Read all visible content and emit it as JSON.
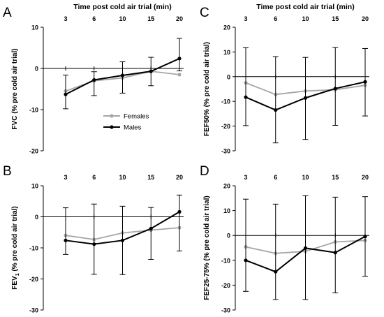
{
  "colors": {
    "females": "#a6a6a6",
    "males": "#000000",
    "axis": "#000000"
  },
  "chart_data": [
    {
      "panel_letter": "A",
      "type": "line",
      "title": "Time post cold air trial (min)",
      "ylabel": "FVC (% pre cold air trial)",
      "xlabel": "",
      "categories": [
        "3",
        "6",
        "10",
        "15",
        "20"
      ],
      "ylim": [
        -20,
        10
      ],
      "yticks": [
        10,
        0,
        -10,
        -20
      ],
      "legend": {
        "position": "inside-bottom-right",
        "entries": [
          "Females",
          "Males"
        ]
      },
      "series": [
        {
          "name": "Females",
          "values": [
            -5.5,
            -3.0,
            -2.3,
            -0.7,
            -1.5
          ],
          "err_plus": [
            0,
            0,
            0,
            0,
            0
          ],
          "err_minus": [
            0,
            0,
            0,
            0,
            0
          ]
        },
        {
          "name": "Males",
          "values": [
            -6.3,
            -2.8,
            -1.7,
            -0.7,
            2.4
          ],
          "err_plus": [
            4.7,
            2.0,
            3.3,
            3.4,
            4.9
          ],
          "err_minus": [
            3.5,
            3.8,
            4.3,
            3.5,
            3.0
          ]
        }
      ]
    },
    {
      "panel_letter": "B",
      "type": "line",
      "title": "",
      "ylabel": "FEV1 (% pre cold air trial)",
      "ylabel_main": "FEV",
      "ylabel_sub": "1",
      "ylabel_rest": " (% pre cold air trial)",
      "xlabel": "",
      "categories": [
        "3",
        "6",
        "10",
        "15",
        "20"
      ],
      "ylim": [
        -30,
        10
      ],
      "yticks": [
        10,
        0,
        -10,
        -20,
        -30
      ],
      "series": [
        {
          "name": "Females",
          "values": [
            -6.0,
            -7.3,
            -5.2,
            -4.3,
            -3.5
          ],
          "err_plus": [
            0,
            0,
            0,
            0,
            0
          ],
          "err_minus": [
            0,
            0,
            0,
            0,
            0
          ]
        },
        {
          "name": "Males",
          "values": [
            -7.6,
            -8.8,
            -7.6,
            -3.8,
            1.6
          ],
          "err_plus": [
            10.5,
            12.9,
            11.0,
            6.8,
            5.4
          ],
          "err_minus": [
            4.5,
            9.7,
            11.0,
            9.9,
            12.6
          ]
        }
      ]
    },
    {
      "panel_letter": "C",
      "type": "line",
      "title": "Time post cold air trial (min)",
      "ylabel": "FEF50% (% pre cold air trial)",
      "xlabel": "",
      "categories": [
        "3",
        "6",
        "10",
        "15",
        "20"
      ],
      "ylim": [
        -30,
        20
      ],
      "yticks": [
        20,
        10,
        0,
        -10,
        -20,
        -30
      ],
      "series": [
        {
          "name": "Females",
          "values": [
            -2.5,
            -7.2,
            -5.8,
            -5.3,
            -3.5
          ],
          "err_plus": [
            0,
            0,
            0,
            0,
            0
          ],
          "err_minus": [
            0,
            0,
            0,
            0,
            0
          ]
        },
        {
          "name": "Males",
          "values": [
            -8.3,
            -13.5,
            -8.6,
            -4.8,
            -2.1
          ],
          "err_plus": [
            20.0,
            21.6,
            16.4,
            16.6,
            13.5
          ],
          "err_minus": [
            11.5,
            13.3,
            16.8,
            14.9,
            13.8
          ]
        }
      ]
    },
    {
      "panel_letter": "D",
      "type": "line",
      "title": "",
      "ylabel": "FEF25-75% (% pre cold air trial)",
      "xlabel": "",
      "categories": [
        "3",
        "6",
        "10",
        "15",
        "20"
      ],
      "ylim": [
        -30,
        20
      ],
      "yticks": [
        20,
        10,
        0,
        -10,
        -20,
        -30
      ],
      "series": [
        {
          "name": "Females",
          "values": [
            -4.6,
            -7.2,
            -6.4,
            -2.6,
            -2.0
          ],
          "err_plus": [
            0,
            0,
            0,
            0,
            0
          ],
          "err_minus": [
            0,
            0,
            0,
            0,
            0
          ]
        },
        {
          "name": "Males",
          "values": [
            -10.0,
            -14.6,
            -5.1,
            -6.9,
            -0.4
          ],
          "err_plus": [
            24.6,
            27.2,
            21.1,
            22.3,
            16.0
          ],
          "err_minus": [
            12.5,
            11.2,
            20.7,
            16.2,
            16.0
          ]
        }
      ]
    }
  ]
}
